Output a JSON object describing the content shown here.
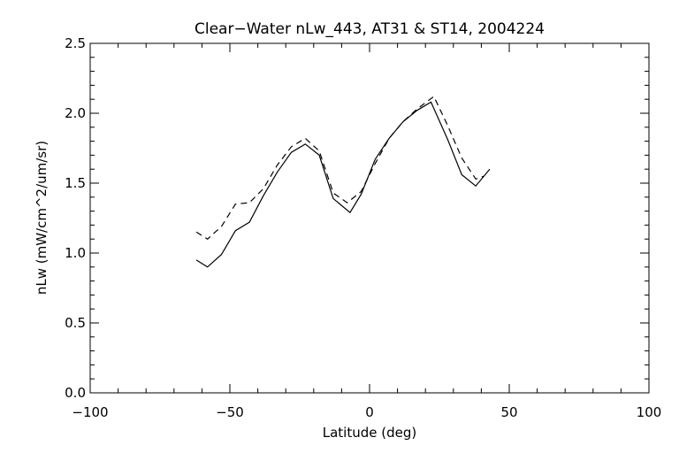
{
  "chart_data": {
    "type": "line",
    "title": "Clear−Water nLw_443, AT31 & ST14, 2004224",
    "xlabel": "Latitude (deg)",
    "ylabel": "nLw (mW/cm^2/um/sr)",
    "xlim": [
      -100,
      100
    ],
    "ylim": [
      0.0,
      2.5
    ],
    "x_ticks": [
      -100,
      -50,
      0,
      50,
      100
    ],
    "x_tick_labels": [
      "−100",
      "−50",
      "0",
      "50",
      "100"
    ],
    "y_ticks": [
      0.0,
      0.5,
      1.0,
      1.5,
      2.0,
      2.5
    ],
    "y_tick_labels": [
      "0.0",
      "0.5",
      "1.0",
      "1.5",
      "2.0",
      "2.5"
    ],
    "grid": false,
    "legend": "none",
    "series": [
      {
        "style": "solid",
        "color": "#000000",
        "x": [
          -62,
          -58,
          -53,
          -48,
          -43,
          -38,
          -33,
          -28,
          -23,
          -18,
          -13,
          -7,
          -3,
          2,
          7,
          12,
          17,
          22,
          28,
          33,
          38,
          43
        ],
        "y": [
          0.95,
          0.9,
          0.99,
          1.16,
          1.22,
          1.41,
          1.58,
          1.72,
          1.78,
          1.7,
          1.39,
          1.29,
          1.42,
          1.67,
          1.82,
          1.94,
          2.02,
          2.08,
          1.81,
          1.56,
          1.48,
          1.6
        ]
      },
      {
        "style": "dashed",
        "color": "#000000",
        "x": [
          -62,
          -58,
          -53,
          -48,
          -43,
          -38,
          -33,
          -28,
          -23,
          -18,
          -13,
          -8,
          -3,
          2,
          7,
          12,
          17,
          23,
          28,
          33,
          38,
          41
        ],
        "y": [
          1.15,
          1.1,
          1.19,
          1.35,
          1.36,
          1.46,
          1.63,
          1.76,
          1.82,
          1.73,
          1.43,
          1.36,
          1.44,
          1.64,
          1.82,
          1.94,
          2.03,
          2.12,
          1.91,
          1.68,
          1.53,
          1.55
        ]
      }
    ]
  }
}
